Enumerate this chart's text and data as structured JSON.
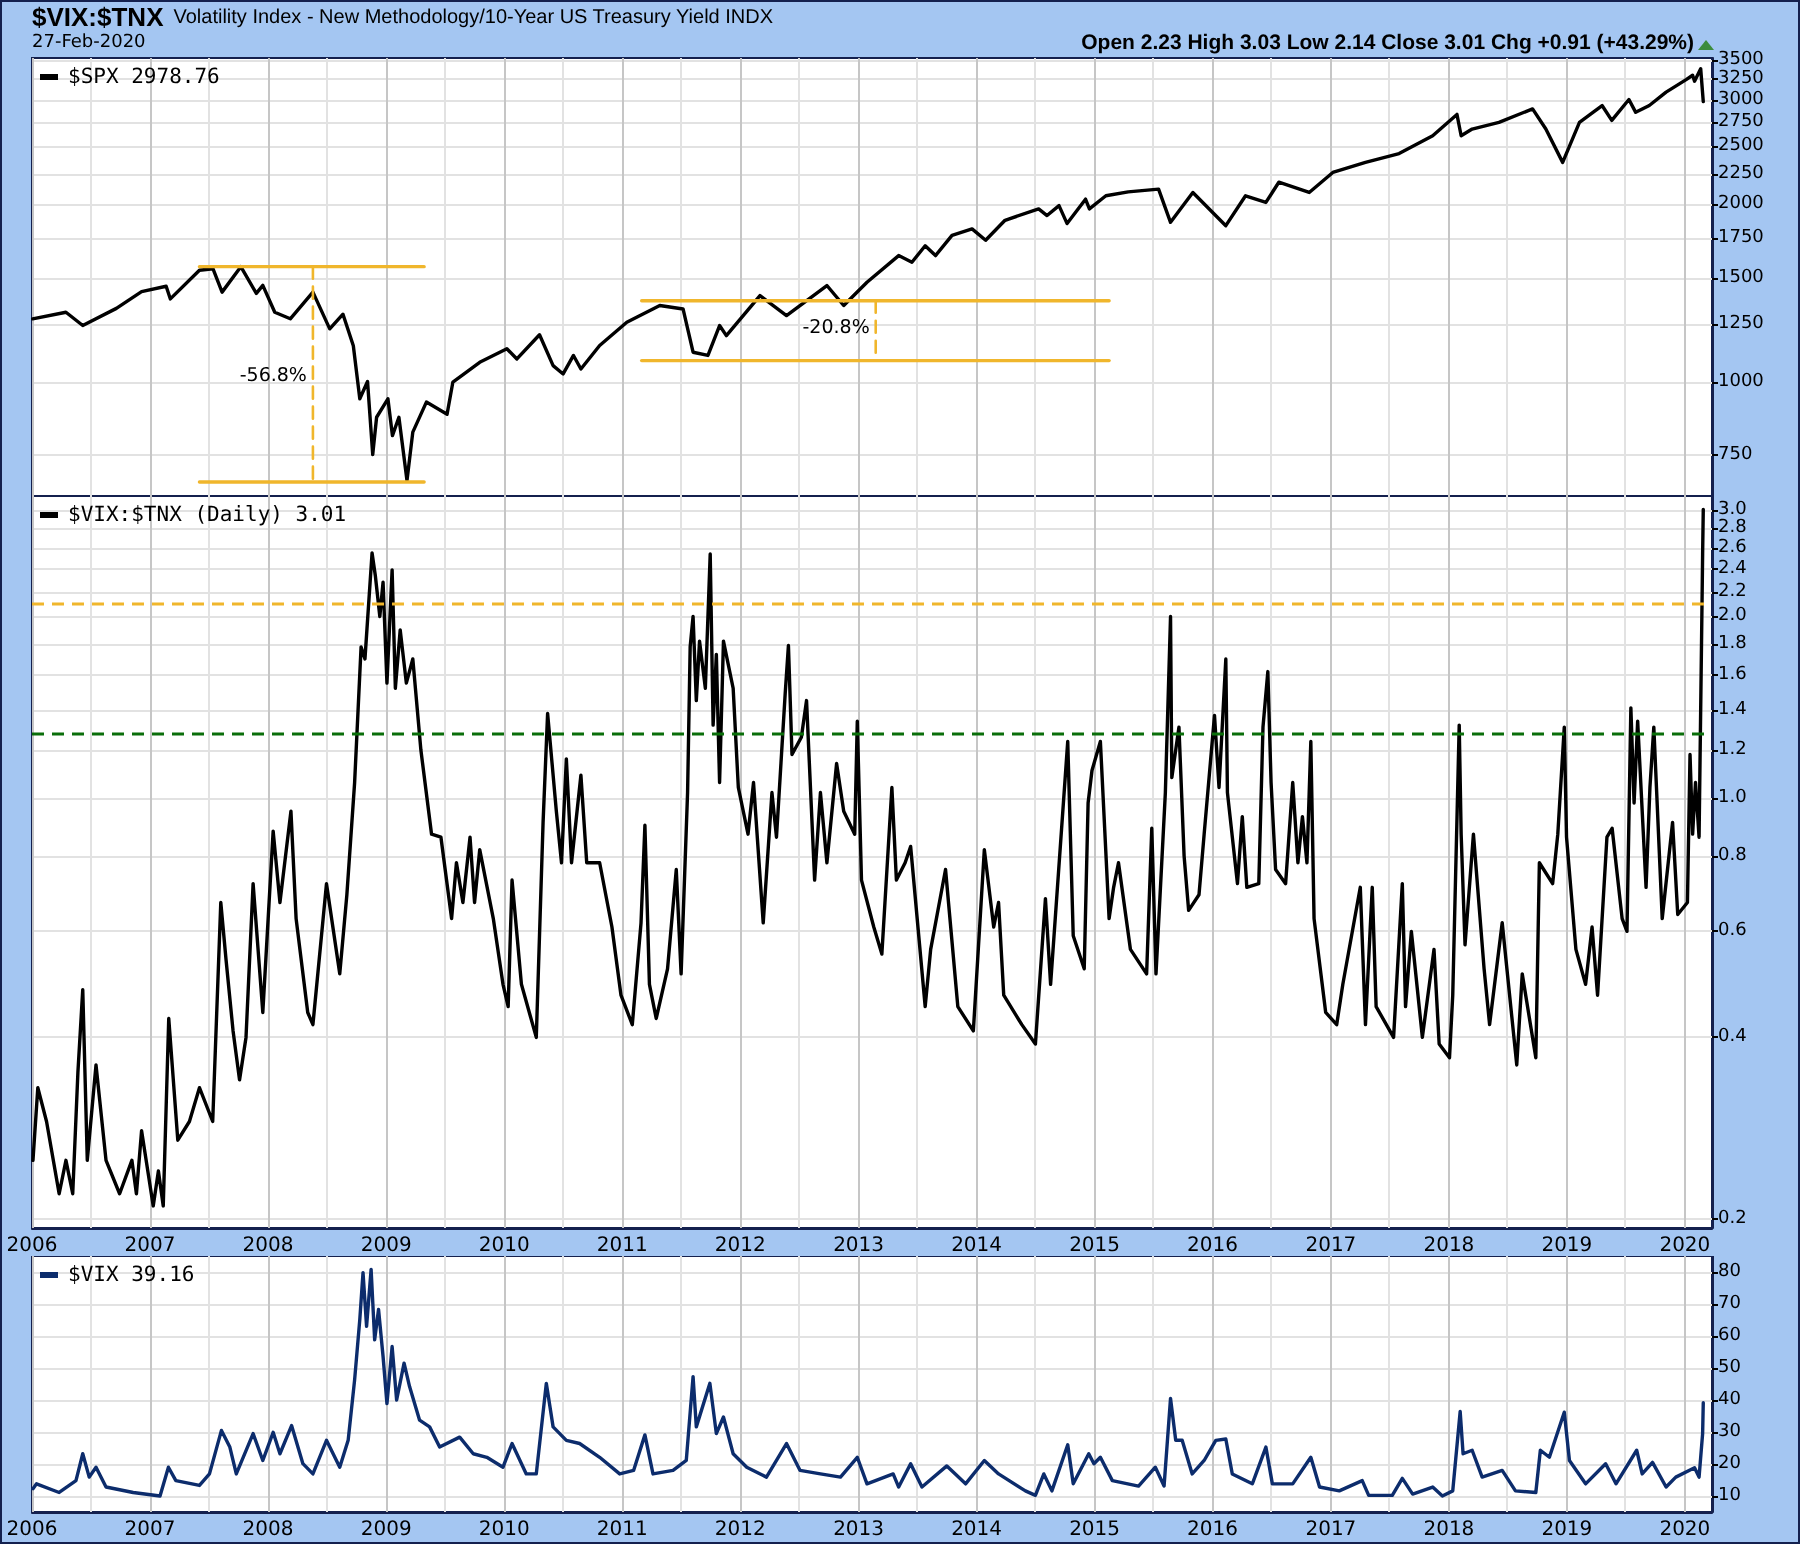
{
  "chart_data": [
    {
      "type": "line",
      "title": "$VIX:$TNX",
      "subtitle": "Volatility Index - New Methodology/10-Year US Treasury Yield INDX",
      "annotations": [
        "27-Feb-2020",
        "Open 2.23 High 3.03 Low 2.14 Close 3.01 Chg +0.91 (+43.29%)",
        {
          "text": "-56.8%",
          "x": "2008-05-19",
          "y": 1023
        },
        {
          "text": "-20.8%",
          "x": "2013-02-23",
          "y": 1230
        }
      ],
      "log": true,
      "grid": true,
      "legend": "top left",
      "tick_labels": "y",
      "xlim": [
        "2006-01-01",
        "2020-03-25"
      ],
      "xticks": [
        "2006",
        {
          "value": "2006-07",
          "label": null
        },
        "2007",
        {
          "value": "2007-07",
          "label": null
        },
        "2008",
        {
          "value": "2008-07",
          "label": null
        },
        "2009",
        {
          "value": "2009-07",
          "label": null
        },
        "2010",
        {
          "value": "2010-07",
          "label": null
        },
        "2011",
        {
          "value": "2011-07",
          "label": null
        },
        "2012",
        {
          "value": "2012-07",
          "label": null
        },
        "2013",
        {
          "value": "2013-07",
          "label": null
        },
        "2014",
        {
          "value": "2014-07",
          "label": null
        },
        "2015",
        {
          "value": "2015-07",
          "label": null
        },
        "2016",
        {
          "value": "2016-07",
          "label": null
        },
        "2017",
        {
          "value": "2017-07",
          "label": null
        },
        "2018",
        {
          "value": "2018-07",
          "label": null
        },
        "2019",
        {
          "value": "2019-07",
          "label": null
        },
        "2020"
      ],
      "ylim": [
        640,
        3530
      ],
      "yticks": [
        750,
        1000,
        1250,
        1500,
        1750,
        2000,
        2250,
        2500,
        2750,
        3000,
        3250,
        3500
      ],
      "series": [
        {
          "name": "$SPX 2978.76",
          "color": "#000000",
          "x": [
            "2006-01-03",
            "2006-04-16",
            "2006-06-07",
            "2006-09-19",
            "2006-12-06",
            "2007-02-20",
            "2007-03-05",
            "2007-06-03",
            "2007-07-15",
            "2007-08-12",
            "2007-10-09",
            "2007-11-26",
            "2007-12-16",
            "2008-01-22",
            "2008-03-10",
            "2008-05-19",
            "2008-07-10",
            "2008-08-20",
            "2008-09-21",
            "2008-10-11",
            "2008-11-04",
            "2008-11-20",
            "2008-12-02",
            "2009-01-06",
            "2009-01-20",
            "2009-02-09",
            "2009-03-06",
            "2009-03-24",
            "2009-05-05",
            "2009-07-08",
            "2009-07-26",
            "2009-10-17",
            "2010-01-09",
            "2010-02-09",
            "2010-04-20",
            "2010-06-01",
            "2010-07-02",
            "2010-08-03",
            "2010-08-26",
            "2010-10-23",
            "2011-01-15",
            "2011-04-27",
            "2011-07-08",
            "2011-08-08",
            "2011-09-23",
            "2011-10-29",
            "2011-11-19",
            "2012-03-02",
            "2012-05-23",
            "2012-09-25",
            "2012-11-16",
            "2013-01-27",
            "2013-05-05",
            "2013-06-15",
            "2013-07-26",
            "2013-08-27",
            "2013-10-17",
            "2013-12-18",
            "2014-01-29",
            "2014-03-30",
            "2014-07-12",
            "2014-08-07",
            "2014-09-13",
            "2014-10-08",
            "2014-12-04",
            "2014-12-16",
            "2015-02-05",
            "2015-04-15",
            "2015-07-18",
            "2015-08-24",
            "2015-11-01",
            "2016-02-11",
            "2016-04-12",
            "2016-06-14",
            "2016-07-24",
            "2016-10-26",
            "2017-01-07",
            "2017-04-18",
            "2017-07-31",
            "2017-11-12",
            "2018-01-26",
            "2018-02-08",
            "2018-03-14",
            "2018-06-05",
            "2018-09-17",
            "2018-10-28",
            "2018-12-19",
            "2019-02-09",
            "2019-04-20",
            "2019-05-20",
            "2019-07-12",
            "2019-08-02",
            "2019-09-13",
            "2019-11-04",
            "2020-01-05",
            "2020-01-25",
            "2020-01-31",
            "2020-02-19",
            "2020-02-27"
          ],
          "values": [
            1277,
            1310,
            1244,
            1330,
            1420,
            1450,
            1380,
            1543,
            1552,
            1417,
            1565,
            1410,
            1455,
            1310,
            1277,
            1417,
            1228,
            1300,
            1150,
            935,
            1000,
            752,
            870,
            935,
            810,
            870,
            680,
            821,
            923,
            880,
            998,
            1078,
            1136,
            1092,
            1200,
            1064,
            1030,
            1107,
            1050,
            1151,
            1260,
            1345,
            1327,
            1121,
            1107,
            1244,
            1196,
            1398,
            1293,
            1454,
            1345,
            1473,
            1634,
            1592,
            1698,
            1634,
            1768,
            1813,
            1735,
            1875,
            1960,
            1910,
            1985,
            1851,
            2036,
            1960,
            2063,
            2095,
            2117,
            1860,
            2090,
            1836,
            2063,
            2010,
            2175,
            2090,
            2259,
            2350,
            2432,
            2607,
            2833,
            2607,
            2676,
            2746,
            2895,
            2676,
            2350,
            2746,
            2933,
            2768,
            3003,
            2856,
            2933,
            3090,
            3245,
            3300,
            3225,
            3386,
            2978.76
          ]
        },
        {
          "color": "#f0b62c",
          "x": [
            "2007-06-03",
            "2009-04-28"
          ],
          "values": [
            1565,
            1565
          ]
        },
        {
          "color": "#f0b62c",
          "x": [
            "2007-06-03",
            "2009-04-28"
          ],
          "values": [
            676,
            676
          ]
        },
        {
          "color": "#f0b62c",
          "line_style": "dashed",
          "x": [
            "2008-05-19",
            "2008-05-19"
          ],
          "values": [
            1565,
            676
          ]
        },
        {
          "color": "#f0b62c",
          "x": [
            "2011-03-02",
            "2015-02-15"
          ],
          "values": [
            1370,
            1370
          ]
        },
        {
          "color": "#f0b62c",
          "x": [
            "2011-03-02",
            "2015-02-15"
          ],
          "values": [
            1085,
            1085
          ]
        },
        {
          "color": "#f0b62c",
          "line_style": "dashed",
          "x": [
            "2013-02-23",
            "2013-02-23"
          ],
          "values": [
            1370,
            1085
          ]
        }
      ]
    },
    {
      "type": "line",
      "log": true,
      "grid": true,
      "legend": "top left",
      "xlim": [
        "2006-01-01",
        "2020-03-25"
      ],
      "xticks": [
        "2006",
        {
          "value": "2006-07",
          "label": null
        },
        "2007",
        {
          "value": "2007-07",
          "label": null
        },
        "2008",
        {
          "value": "2008-07",
          "label": null
        },
        "2009",
        {
          "value": "2009-07",
          "label": null
        },
        "2010",
        {
          "value": "2010-07",
          "label": null
        },
        "2011",
        {
          "value": "2011-07",
          "label": null
        },
        "2012",
        {
          "value": "2012-07",
          "label": null
        },
        "2013",
        {
          "value": "2013-07",
          "label": null
        },
        "2014",
        {
          "value": "2014-07",
          "label": null
        },
        "2015",
        {
          "value": "2015-07",
          "label": null
        },
        "2016",
        {
          "value": "2016-07",
          "label": null
        },
        "2017",
        {
          "value": "2017-07",
          "label": null
        },
        "2018",
        {
          "value": "2018-07",
          "label": null
        },
        "2019",
        {
          "value": "2019-07",
          "label": null
        },
        "2020"
      ],
      "ylim": [
        0.193,
        3.17
      ],
      "yticks": [
        0.2,
        0.4,
        0.6,
        0.8,
        {
          "value": 1,
          "label": "1.0"
        },
        1.2,
        1.4,
        1.6,
        1.8,
        {
          "value": 2,
          "label": "2.0"
        },
        2.2,
        2.4,
        2.6,
        2.8,
        {
          "value": 3,
          "label": "3.0"
        }
      ],
      "ref_lines": [
        {
          "axis": "y",
          "value": 2.1,
          "color": "#f0b62c",
          "line_style": "dashed"
        },
        {
          "axis": "y",
          "value": 1.28,
          "color": "#0a6e0a",
          "line_style": "dashed"
        }
      ],
      "series": [
        {
          "name": "$VIX:$TNX (Daily) 3.01",
          "color": "#000000",
          "x": [
            "2006-01-04",
            "2006-01-19",
            "2006-02-15",
            "2006-03-26",
            "2006-04-16",
            "2006-05-07",
            "2006-05-23",
            "2006-06-07",
            "2006-06-21",
            "2006-07-18",
            "2006-08-18",
            "2006-09-29",
            "2006-11-06",
            "2006-11-20",
            "2006-12-06",
            "2007-01-11",
            "2007-01-27",
            "2007-02-11",
            "2007-02-28",
            "2007-03-28",
            "2007-05-03",
            "2007-06-03",
            "2007-07-14",
            "2007-08-08",
            "2007-08-24",
            "2007-09-15",
            "2007-10-05",
            "2007-10-25",
            "2007-11-16",
            "2007-12-16",
            "2008-01-17",
            "2008-02-07",
            "2008-03-12",
            "2008-03-28",
            "2008-05-03",
            "2008-05-19",
            "2008-06-30",
            "2008-08-10",
            "2008-09-01",
            "2008-09-25",
            "2008-10-15",
            "2008-10-27",
            "2008-11-18",
            "2008-11-28",
            "2008-12-12",
            "2008-12-22",
            "2009-01-03",
            "2009-01-19",
            "2009-01-29",
            "2009-02-13",
            "2009-03-04",
            "2009-03-24",
            "2009-04-18",
            "2009-05-21",
            "2009-06-19",
            "2009-07-22",
            "2009-08-06",
            "2009-08-26",
            "2009-09-17",
            "2009-10-01",
            "2009-10-17",
            "2009-11-28",
            "2009-12-28",
            "2010-01-13",
            "2010-01-25",
            "2010-02-23",
            "2010-04-10",
            "2010-05-01",
            "2010-05-15",
            "2010-06-11",
            "2010-06-27",
            "2010-07-12",
            "2010-07-28",
            "2010-08-26",
            "2010-09-13",
            "2010-10-23",
            "2010-11-30",
            "2010-12-28",
            "2011-02-01",
            "2011-02-28",
            "2011-03-12",
            "2011-03-26",
            "2011-04-16",
            "2011-05-21",
            "2011-06-17",
            "2011-07-02",
            "2011-07-22",
            "2011-07-30",
            "2011-08-08",
            "2011-08-18",
            "2011-08-28",
            "2011-09-15",
            "2011-09-30",
            "2011-10-09",
            "2011-10-19",
            "2011-10-29",
            "2011-11-10",
            "2011-12-10",
            "2011-12-26",
            "2012-01-25",
            "2012-02-11",
            "2012-03-12",
            "2012-04-08",
            "2012-04-22",
            "2012-05-19",
            "2012-05-29",
            "2012-06-09",
            "2012-07-08",
            "2012-07-24",
            "2012-08-18",
            "2012-09-05",
            "2012-09-25",
            "2012-10-25",
            "2012-11-16",
            "2012-12-20",
            "2012-12-28",
            "2013-01-10",
            "2013-02-17",
            "2013-03-14",
            "2013-04-14",
            "2013-04-28",
            "2013-05-25",
            "2013-06-11",
            "2013-07-26",
            "2013-08-12",
            "2013-09-27",
            "2013-11-04",
            "2013-12-22",
            "2014-01-25",
            "2014-02-23",
            "2014-03-10",
            "2014-03-26",
            "2014-05-21",
            "2014-07-02",
            "2014-08-02",
            "2014-08-18",
            "2014-10-10",
            "2014-10-27",
            "2014-11-30",
            "2014-12-12",
            "2014-12-24",
            "2015-01-19",
            "2015-02-15",
            "2015-03-01",
            "2015-03-16",
            "2015-04-22",
            "2015-06-11",
            "2015-06-27",
            "2015-07-10",
            "2015-08-08",
            "2015-08-24",
            "2015-08-28",
            "2015-09-19",
            "2015-10-05",
            "2015-10-19",
            "2015-11-20",
            "2015-12-06",
            "2016-01-07",
            "2016-01-21",
            "2016-02-11",
            "2016-02-16",
            "2016-03-18",
            "2016-04-02",
            "2016-04-16",
            "2016-05-23",
            "2016-06-05",
            "2016-06-20",
            "2016-06-30",
            "2016-07-14",
            "2016-08-14",
            "2016-09-05",
            "2016-09-21",
            "2016-10-05",
            "2016-10-19",
            "2016-10-31",
            "2016-11-10",
            "2016-12-16",
            "2017-01-19",
            "2017-02-07",
            "2017-04-02",
            "2017-04-18",
            "2017-05-09",
            "2017-05-21",
            "2017-07-14",
            "2017-08-10",
            "2017-08-20",
            "2017-09-07",
            "2017-10-11",
            "2017-11-16",
            "2017-12-02",
            "2018-01-03",
            "2018-01-13",
            "2018-02-02",
            "2018-02-08",
            "2018-02-20",
            "2018-03-18",
            "2018-04-20",
            "2018-05-07",
            "2018-06-15",
            "2018-07-30",
            "2018-08-16",
            "2018-09-27",
            "2018-10-08",
            "2018-11-18",
            "2018-12-04",
            "2018-12-24",
            "2018-12-31",
            "2019-01-29",
            "2019-02-28",
            "2019-03-20",
            "2019-04-06",
            "2019-05-05",
            "2019-05-21",
            "2019-06-21",
            "2019-07-06",
            "2019-07-18",
            "2019-07-28",
            "2019-08-08",
            "2019-09-03",
            "2019-09-15",
            "2019-09-27",
            "2019-10-23",
            "2019-11-24",
            "2019-12-10",
            "2020-01-09",
            "2020-01-17",
            "2020-01-25",
            "2020-02-03",
            "2020-02-14",
            "2020-02-24",
            "2020-02-25",
            "2020-02-27"
          ],
          "values": [
            0.25,
            0.33,
            0.29,
            0.22,
            0.25,
            0.22,
            0.35,
            0.48,
            0.25,
            0.36,
            0.25,
            0.22,
            0.25,
            0.22,
            0.28,
            0.21,
            0.24,
            0.21,
            0.43,
            0.27,
            0.29,
            0.33,
            0.29,
            0.67,
            0.54,
            0.41,
            0.34,
            0.4,
            0.72,
            0.44,
            0.88,
            0.67,
            0.95,
            0.63,
            0.44,
            0.42,
            0.72,
            0.51,
            0.69,
            1.06,
            1.78,
            1.7,
            2.55,
            2.34,
            2.0,
            2.28,
            1.55,
            2.39,
            1.52,
            1.9,
            1.55,
            1.7,
            1.2,
            0.87,
            0.86,
            0.63,
            0.78,
            0.67,
            0.86,
            0.67,
            0.82,
            0.63,
            0.49,
            0.45,
            0.73,
            0.49,
            0.4,
            0.91,
            1.38,
            0.95,
            0.78,
            1.16,
            0.78,
            1.09,
            0.78,
            0.78,
            0.61,
            0.47,
            0.42,
            0.62,
            0.9,
            0.49,
            0.43,
            0.52,
            0.76,
            0.51,
            1.02,
            1.78,
            2.0,
            1.45,
            1.82,
            1.52,
            2.54,
            1.32,
            1.73,
            1.06,
            1.82,
            1.52,
            1.04,
            0.87,
            1.06,
            0.62,
            1.02,
            0.86,
            1.49,
            1.79,
            1.18,
            1.26,
            1.45,
            0.73,
            1.02,
            0.78,
            1.14,
            0.95,
            0.87,
            1.34,
            0.73,
            0.61,
            0.55,
            1.04,
            0.73,
            0.78,
            0.83,
            0.45,
            0.56,
            0.76,
            0.45,
            0.41,
            0.82,
            0.61,
            0.67,
            0.47,
            0.42,
            0.39,
            0.68,
            0.49,
            1.24,
            0.59,
            0.52,
            0.98,
            1.11,
            1.24,
            0.63,
            0.71,
            0.78,
            0.56,
            0.51,
            0.89,
            0.51,
            1.02,
            2.0,
            1.08,
            1.31,
            0.8,
            0.65,
            0.69,
            0.87,
            1.37,
            1.04,
            1.7,
            1.02,
            0.72,
            0.93,
            0.71,
            0.72,
            1.31,
            1.62,
            1.06,
            0.76,
            0.72,
            1.06,
            0.78,
            0.93,
            0.78,
            1.24,
            0.63,
            0.44,
            0.42,
            0.49,
            0.71,
            0.42,
            0.71,
            0.45,
            0.4,
            0.72,
            0.45,
            0.6,
            0.4,
            0.56,
            0.39,
            0.37,
            0.47,
            1.32,
            0.87,
            0.57,
            0.87,
            0.52,
            0.42,
            0.62,
            0.36,
            0.51,
            0.37,
            0.78,
            0.72,
            0.87,
            1.31,
            0.86,
            0.56,
            0.49,
            0.61,
            0.47,
            0.86,
            0.89,
            0.63,
            0.6,
            1.41,
            0.98,
            1.34,
            0.71,
            1.04,
            1.31,
            0.63,
            0.91,
            0.64,
            0.67,
            1.18,
            0.87,
            1.06,
            0.86,
            2.29,
            2.54,
            3.01
          ]
        }
      ]
    },
    {
      "type": "line",
      "grid": true,
      "legend": "top left",
      "xlim": [
        "2006-01-01",
        "2020-03-25"
      ],
      "xticks": [
        "2006",
        {
          "value": "2006-07",
          "label": null
        },
        "2007",
        {
          "value": "2007-07",
          "label": null
        },
        "2008",
        {
          "value": "2008-07",
          "label": null
        },
        "2009",
        {
          "value": "2009-07",
          "label": null
        },
        "2010",
        {
          "value": "2010-07",
          "label": null
        },
        "2011",
        {
          "value": "2011-07",
          "label": null
        },
        "2012",
        {
          "value": "2012-07",
          "label": null
        },
        "2013",
        {
          "value": "2013-07",
          "label": null
        },
        "2014",
        {
          "value": "2014-07",
          "label": null
        },
        "2015",
        {
          "value": "2015-07",
          "label": null
        },
        "2016",
        {
          "value": "2016-07",
          "label": null
        },
        "2017",
        {
          "value": "2017-07",
          "label": null
        },
        "2018",
        {
          "value": "2018-07",
          "label": null
        },
        "2019",
        {
          "value": "2019-07",
          "label": null
        },
        "2020"
      ],
      "ylim": [
        5,
        85
      ],
      "yticks": [
        10,
        20,
        30,
        40,
        50,
        60,
        70,
        80
      ],
      "series": [
        {
          "name": "$VIX 39.16",
          "color": "#0c2c6c",
          "x": [
            "2006-01-04",
            "2006-01-15",
            "2006-03-26",
            "2006-05-17",
            "2006-06-07",
            "2006-06-27",
            "2006-07-18",
            "2006-08-18",
            "2006-11-10",
            "2007-02-01",
            "2007-02-27",
            "2007-03-22",
            "2007-06-03",
            "2007-07-04",
            "2007-08-10",
            "2007-09-05",
            "2007-09-25",
            "2007-11-16",
            "2007-12-16",
            "2008-01-17",
            "2008-02-07",
            "2008-03-14",
            "2008-04-18",
            "2008-05-19",
            "2008-06-30",
            "2008-08-10",
            "2008-09-05",
            "2008-09-25",
            "2008-10-11",
            "2008-10-21",
            "2008-11-01",
            "2008-11-15",
            "2008-11-26",
            "2008-12-08",
            "2008-12-22",
            "2009-01-03",
            "2009-01-19",
            "2009-02-02",
            "2009-02-25",
            "2009-03-14",
            "2009-04-14",
            "2009-05-15",
            "2009-06-15",
            "2009-08-16",
            "2009-09-27",
            "2009-11-08",
            "2009-12-28",
            "2010-01-25",
            "2010-03-10",
            "2010-04-10",
            "2010-05-11",
            "2010-06-01",
            "2010-07-12",
            "2010-08-22",
            "2010-10-23",
            "2010-12-24",
            "2011-02-05",
            "2011-03-12",
            "2011-04-06",
            "2011-06-07",
            "2011-07-18",
            "2011-08-08",
            "2011-08-18",
            "2011-09-29",
            "2011-10-19",
            "2011-11-10",
            "2011-12-10",
            "2012-01-21",
            "2012-03-22",
            "2012-05-23",
            "2012-07-04",
            "2012-09-05",
            "2012-11-06",
            "2012-12-28",
            "2013-01-27",
            "2013-04-18",
            "2013-05-05",
            "2013-06-11",
            "2013-07-16",
            "2013-10-01",
            "2013-11-28",
            "2014-01-25",
            "2014-03-10",
            "2014-06-01",
            "2014-07-02",
            "2014-07-28",
            "2014-08-22",
            "2014-10-10",
            "2014-10-27",
            "2014-12-14",
            "2014-12-30",
            "2015-01-19",
            "2015-02-25",
            "2015-05-17",
            "2015-07-08",
            "2015-08-04",
            "2015-08-24",
            "2015-09-09",
            "2015-09-29",
            "2015-10-30",
            "2015-12-06",
            "2016-01-11",
            "2016-02-11",
            "2016-03-02",
            "2016-05-03",
            "2016-06-14",
            "2016-07-04",
            "2016-09-05",
            "2016-10-31",
            "2016-11-27",
            "2017-01-27",
            "2017-04-08",
            "2017-04-28",
            "2017-07-10",
            "2017-08-10",
            "2017-09-11",
            "2017-11-12",
            "2017-12-12",
            "2018-01-13",
            "2018-02-05",
            "2018-02-14",
            "2018-03-14",
            "2018-04-14",
            "2018-06-15",
            "2018-07-26",
            "2018-09-27",
            "2018-10-11",
            "2018-11-08",
            "2018-12-24",
            "2019-01-09",
            "2019-02-28",
            "2019-05-01",
            "2019-06-02",
            "2019-08-05",
            "2019-08-22",
            "2019-09-23",
            "2019-11-04",
            "2019-12-04",
            "2020-01-31",
            "2020-02-14",
            "2020-02-25",
            "2020-02-27"
          ],
          "values": [
            12.3,
            13.8,
            11.1,
            14.8,
            23.2,
            15.9,
            19.0,
            12.8,
            11.1,
            10.0,
            19.0,
            14.8,
            13.3,
            16.9,
            30.5,
            25.3,
            16.9,
            29.5,
            21.1,
            29.9,
            23.2,
            32.0,
            20.1,
            16.9,
            27.4,
            19.0,
            27.4,
            46.3,
            65.1,
            79.8,
            63.0,
            80.8,
            58.8,
            68.3,
            53.6,
            38.9,
            56.7,
            40.0,
            51.5,
            44.2,
            33.7,
            31.6,
            25.3,
            28.4,
            23.2,
            22.1,
            19.0,
            26.4,
            16.9,
            16.9,
            45.2,
            31.6,
            27.4,
            26.4,
            22.1,
            16.9,
            18.0,
            29.1,
            16.9,
            18.0,
            21.1,
            47.3,
            31.6,
            45.2,
            29.5,
            34.7,
            23.2,
            19.0,
            15.9,
            26.4,
            18.0,
            16.9,
            15.9,
            22.1,
            13.8,
            16.9,
            12.8,
            20.1,
            12.8,
            19.4,
            13.8,
            21.1,
            16.9,
            11.6,
            10.2,
            16.9,
            11.6,
            26.0,
            13.8,
            23.2,
            20.1,
            22.1,
            14.8,
            13.1,
            19.0,
            13.1,
            40.5,
            27.4,
            27.4,
            16.9,
            21.1,
            27.4,
            27.8,
            16.9,
            13.8,
            25.3,
            13.8,
            13.8,
            22.1,
            12.8,
            11.6,
            14.8,
            10.2,
            10.2,
            15.5,
            10.6,
            12.8,
            10.0,
            11.6,
            36.4,
            23.2,
            24.3,
            15.9,
            18.0,
            11.6,
            11.1,
            24.3,
            22.1,
            36.2,
            21.1,
            13.8,
            20.1,
            13.8,
            24.3,
            16.9,
            20.5,
            12.8,
            15.9,
            18.8,
            15.9,
            29.5,
            39.16
          ]
        }
      ]
    }
  ]
}
